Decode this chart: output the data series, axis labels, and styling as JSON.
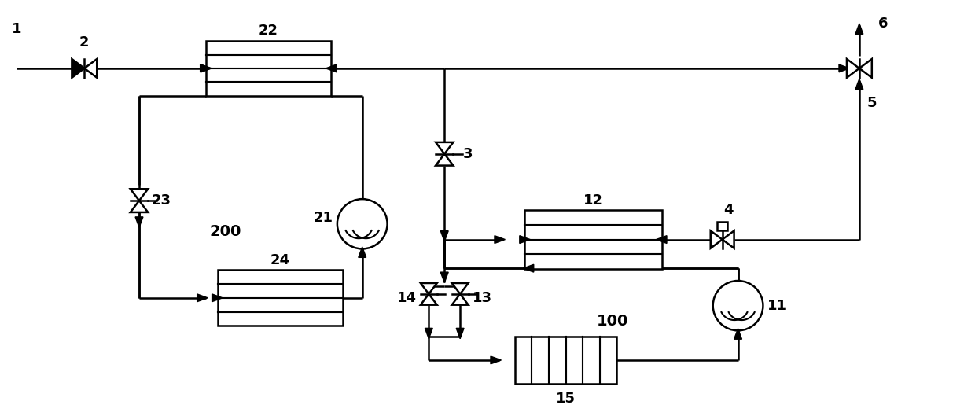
{
  "bg_color": "#ffffff",
  "line_color": "#000000",
  "lw": 1.8,
  "figsize": [
    12.4,
    5.29
  ],
  "dpi": 100
}
